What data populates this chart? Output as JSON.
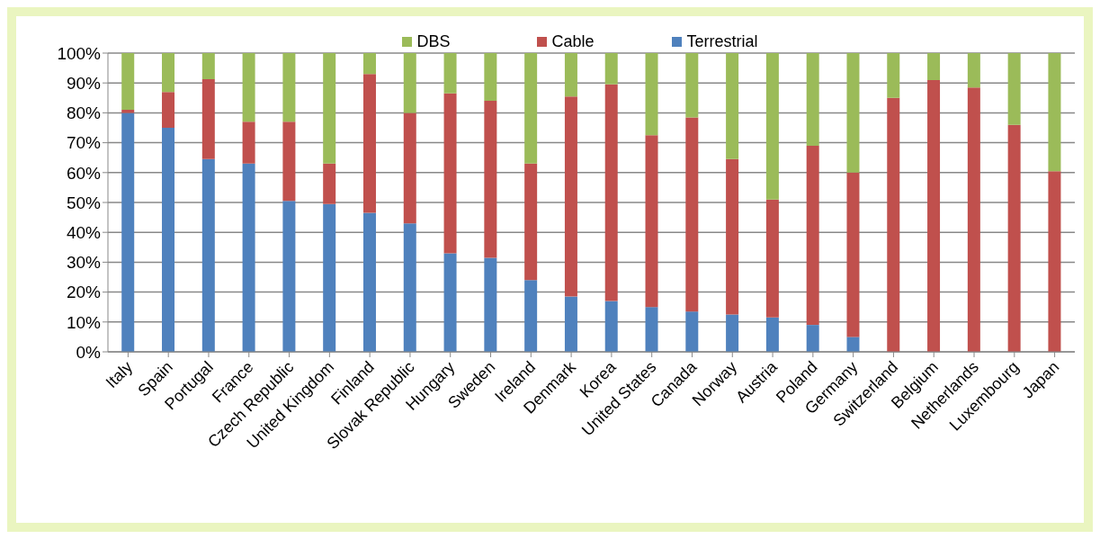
{
  "chart_data": {
    "type": "bar",
    "stacked": true,
    "legend": "top",
    "grid": "y",
    "categories": [
      "Italy",
      "Spain",
      "Portugal",
      "France",
      "Czech Republic",
      "United Kingdom",
      "Finland",
      "Slovak Republic",
      "Hungary",
      "Sweden",
      "Ireland",
      "Denmark",
      "Korea",
      "United States",
      "Canada",
      "Norway",
      "Austria",
      "Poland",
      "Germany",
      "Switzerland",
      "Belgium",
      "Netherlands",
      "Luxembourg",
      "Japan"
    ],
    "series": [
      {
        "name": "Terrestrial",
        "color": "#4f81bd",
        "values": [
          80,
          75,
          64.5,
          63,
          50.5,
          49.5,
          46.5,
          43,
          33,
          31.5,
          24,
          18.5,
          17,
          15,
          13.5,
          12.5,
          11.5,
          9,
          5,
          0,
          0,
          0,
          0,
          0
        ]
      },
      {
        "name": "Cable",
        "color": "#c0504d",
        "values": [
          1,
          12,
          26.8,
          14,
          26.5,
          13.5,
          46.5,
          37,
          53.5,
          52.5,
          39,
          67,
          72.5,
          57.5,
          65,
          52,
          39.5,
          60,
          55,
          85,
          91,
          88.5,
          76,
          60.5
        ]
      },
      {
        "name": "DBS",
        "color": "#9bbb59",
        "values": [
          19,
          13,
          8.7,
          23,
          23,
          37,
          7,
          20,
          13.5,
          16,
          37,
          14.5,
          10.5,
          27.5,
          21.5,
          35.5,
          49,
          31,
          40,
          15,
          9,
          11.5,
          24,
          39.5
        ]
      }
    ],
    "ylim": [
      0,
      100
    ],
    "yticks": [
      {
        "value": 0,
        "label": "0%"
      },
      {
        "value": 10,
        "label": "10%"
      },
      {
        "value": 20,
        "label": "20%"
      },
      {
        "value": 30,
        "label": "30%"
      },
      {
        "value": 40,
        "label": "40%"
      },
      {
        "value": 50,
        "label": "50%"
      },
      {
        "value": 60,
        "label": "60%"
      },
      {
        "value": 70,
        "label": "70%"
      },
      {
        "value": 80,
        "label": "80%"
      },
      {
        "value": 90,
        "label": "90%"
      },
      {
        "value": 100,
        "label": "100%"
      }
    ]
  }
}
